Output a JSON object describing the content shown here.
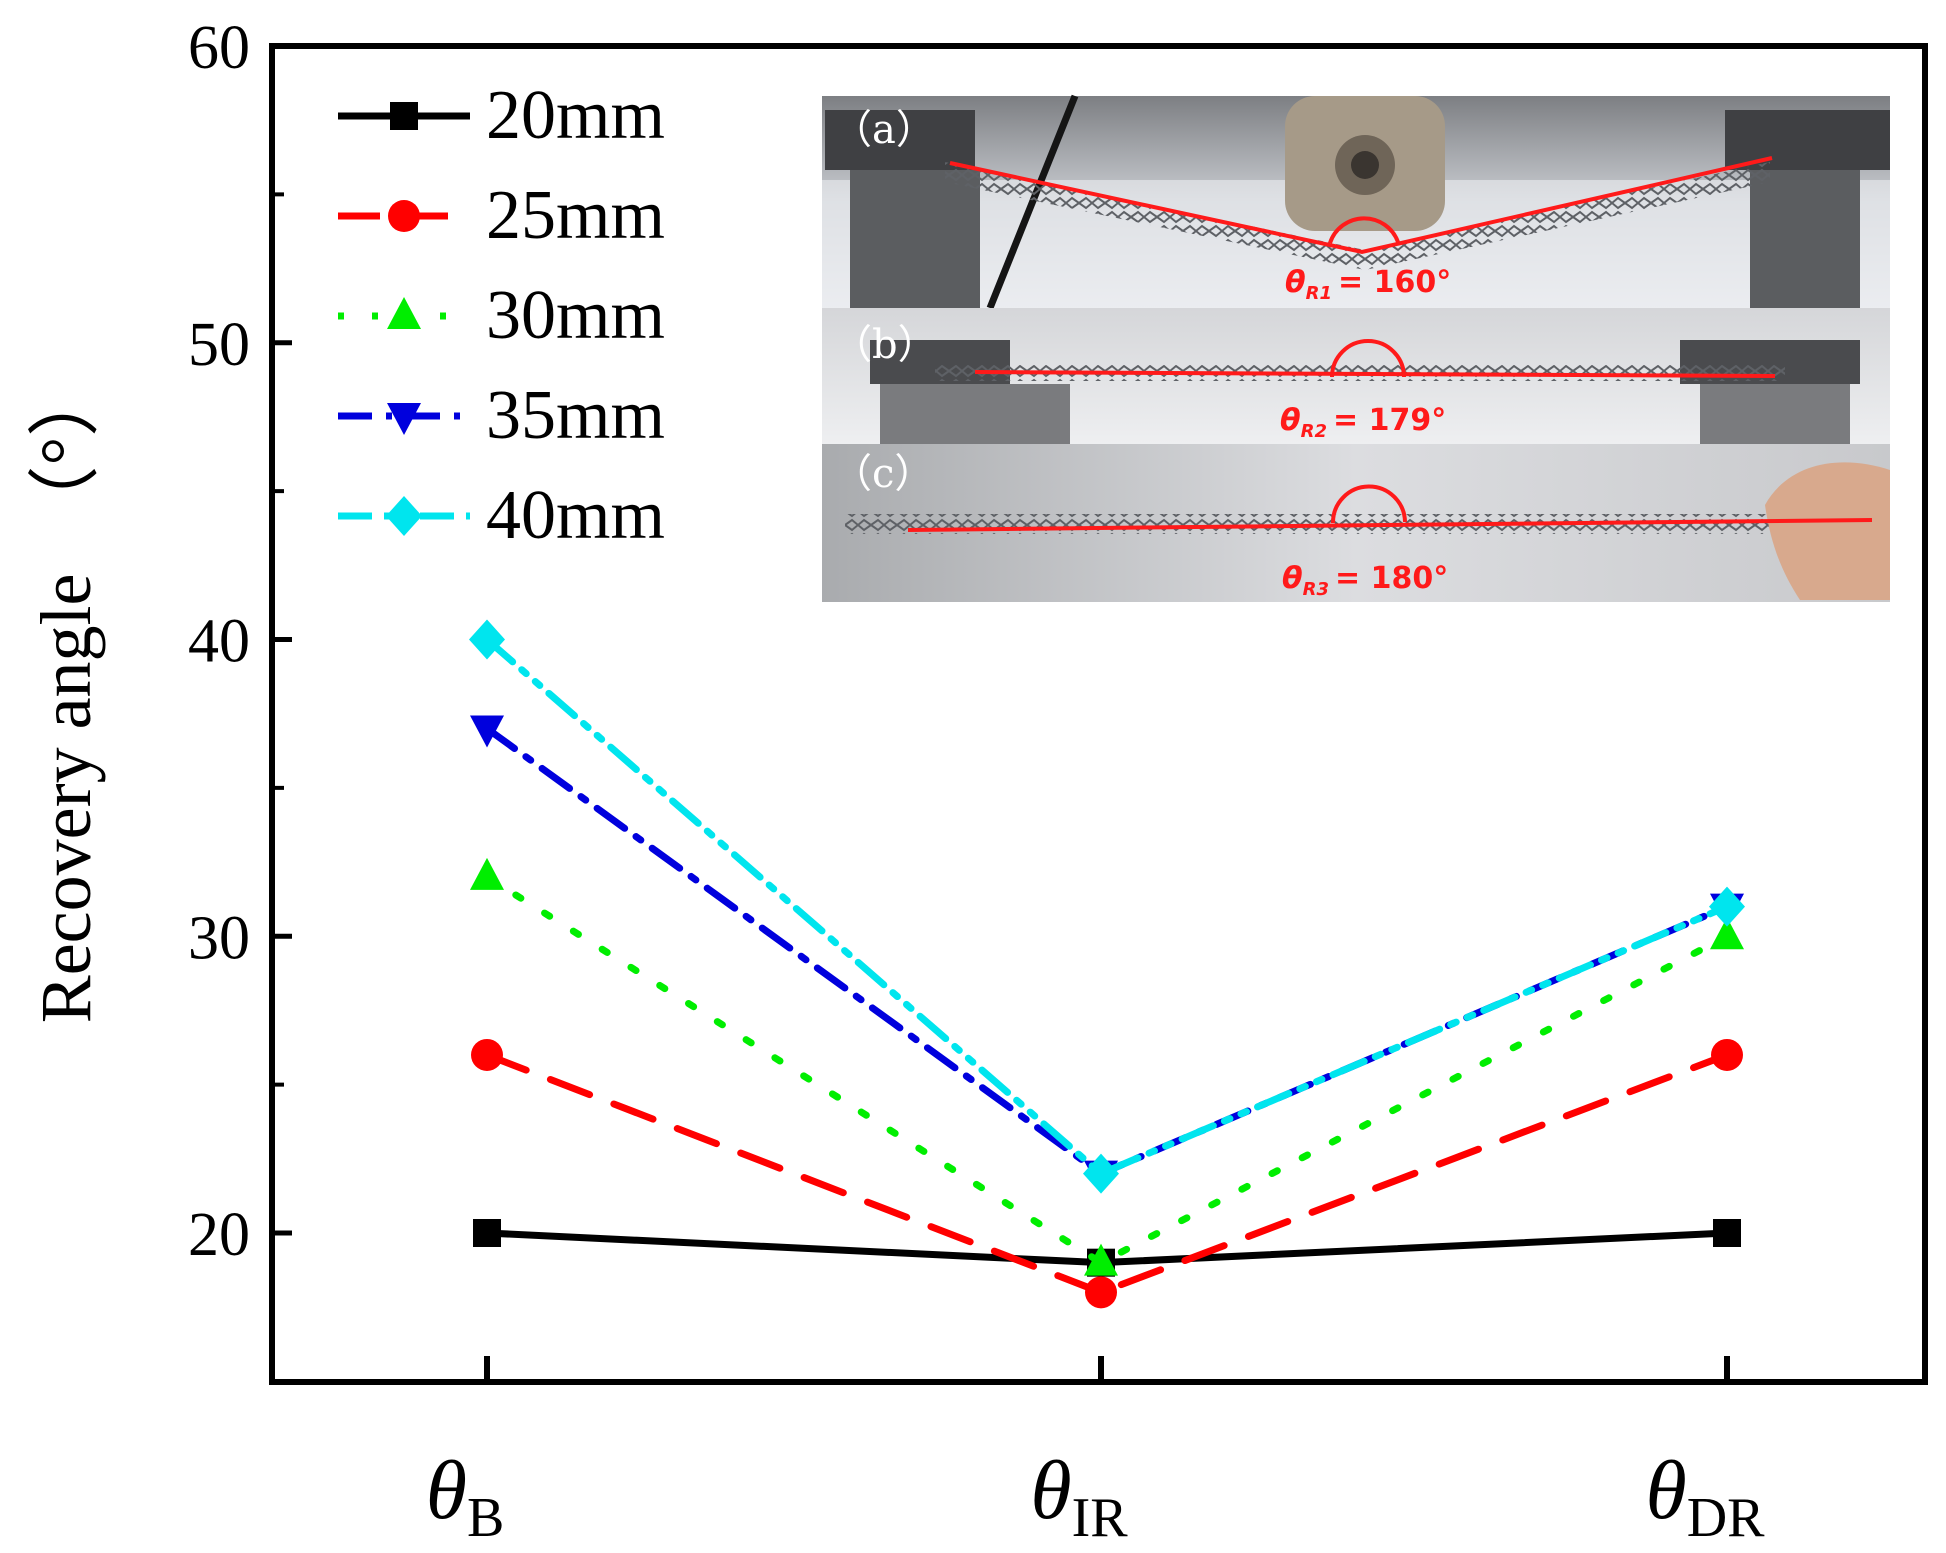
{
  "chart_data": {
    "type": "line",
    "title": "",
    "xlabel": "",
    "ylabel": "Recovery angle （°）",
    "ylabel_text": "Recovery angle",
    "ylabel_unit": "（°）",
    "categories": [
      {
        "main": "θ",
        "sub": "B"
      },
      {
        "main": "θ",
        "sub": "IR"
      },
      {
        "main": "θ",
        "sub": "DR"
      }
    ],
    "ylim": [
      15,
      60
    ],
    "yticks": [
      "20",
      "30",
      "40",
      "50",
      "60"
    ],
    "grid": false,
    "legend_position": "top-left",
    "series": [
      {
        "name": "20mm",
        "values": [
          20,
          19,
          20
        ],
        "color": "#000000",
        "marker": "square",
        "dash": "solid"
      },
      {
        "name": "25mm",
        "values": [
          26,
          18,
          26
        ],
        "color": "#ff0000",
        "marker": "circle",
        "dash": "dashed"
      },
      {
        "name": "30mm",
        "values": [
          32,
          19,
          30
        ],
        "color": "#00ee00",
        "marker": "triangle-up",
        "dash": "dotted"
      },
      {
        "name": "35mm",
        "values": [
          37,
          22,
          31
        ],
        "color": "#0000dd",
        "marker": "triangle-down",
        "dash": "dashdot"
      },
      {
        "name": "40mm",
        "values": [
          40,
          22,
          31
        ],
        "color": "#00e5ee",
        "marker": "diamond",
        "dash": "dashdotdot"
      }
    ],
    "inset": {
      "panels": [
        {
          "label": "（a）",
          "annotation": "θR1 = 160°",
          "symbol": "θ",
          "sub": "R1",
          "value": "= 160°"
        },
        {
          "label": "（b）",
          "annotation": "θR2 = 179°",
          "symbol": "θ",
          "sub": "R2",
          "value": "= 179°"
        },
        {
          "label": "（c）",
          "annotation": "θR3 = 180°",
          "symbol": "θ",
          "sub": "R3",
          "value": "= 180°"
        }
      ]
    }
  }
}
